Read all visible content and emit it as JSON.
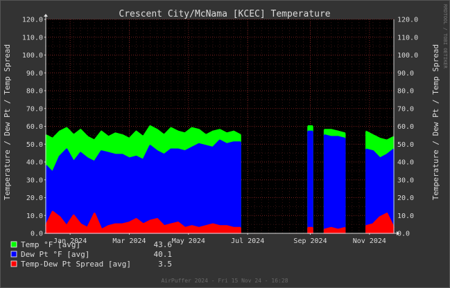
{
  "chart_data": {
    "type": "area",
    "title": "Crescent City/McNama [KCEC] Temperature",
    "ylabel_left": "Temperature / Dew Pt / Temp Spread",
    "ylabel_right": "Temperature / Dew Pt / Temp Spread",
    "ylim": [
      0,
      120
    ],
    "y_ticks": [
      "0.0",
      "10.0",
      "20.0",
      "30.0",
      "40.0",
      "50.0",
      "60.0",
      "70.0",
      "80.0",
      "90.0",
      "100.0",
      "110.0",
      "120.0"
    ],
    "x_tick_labels": [
      "Jan 2024",
      "Mar 2024",
      "May 2024",
      "Jul 2024",
      "Sep 2024",
      "Nov 2024"
    ],
    "x_tick_weeks": [
      3.5,
      12,
      20.5,
      29,
      38,
      46.5
    ],
    "x_range_weeks": [
      0,
      50
    ],
    "week_x": [
      0,
      1,
      2,
      3,
      4,
      5,
      6,
      7,
      8,
      9,
      10,
      11,
      12,
      13,
      14,
      15,
      16,
      17,
      18,
      19,
      20,
      21,
      22,
      23,
      24,
      25,
      26,
      27,
      28,
      29,
      30,
      31,
      32,
      33,
      34,
      35,
      36,
      37,
      38,
      39,
      40,
      41,
      42,
      43,
      44,
      45,
      46,
      47,
      48,
      49,
      50
    ],
    "series": [
      {
        "name": "Temp °F [avg]",
        "color": "#00ff00",
        "summary": "43.6",
        "values": [
          55,
          53,
          57,
          59,
          55,
          58,
          54,
          52,
          57,
          54,
          56,
          55,
          53,
          57,
          54,
          60,
          58,
          55,
          59,
          57,
          56,
          59,
          58,
          55,
          57,
          58,
          56,
          57,
          55,
          null,
          null,
          null,
          null,
          null,
          null,
          null,
          null,
          null,
          60,
          null,
          58,
          58,
          57,
          56,
          null,
          null,
          57,
          55,
          53,
          52,
          54
        ]
      },
      {
        "name": "Dew Pt °F [avg]",
        "color": "#0000ff",
        "summary": "40.1",
        "values": [
          38,
          34,
          43,
          47,
          40,
          45,
          42,
          40,
          46,
          45,
          44,
          44,
          42,
          43,
          41,
          49,
          46,
          44,
          47,
          47,
          46,
          48,
          50,
          49,
          48,
          52,
          50,
          51,
          51,
          null,
          null,
          null,
          null,
          null,
          null,
          null,
          null,
          null,
          57,
          null,
          55,
          54,
          54,
          53,
          null,
          null,
          47,
          46,
          42,
          44,
          47
        ]
      },
      {
        "name": "Temp-Dew Pt Spread [avg]",
        "color": "#ff0000",
        "summary": "3.5",
        "values": [
          4,
          12,
          9,
          4,
          10,
          5,
          3,
          11,
          2,
          4,
          5,
          5,
          6,
          8,
          5,
          7,
          8,
          4,
          5,
          6,
          3,
          4,
          3,
          4,
          5,
          4,
          4,
          3,
          3,
          null,
          null,
          null,
          null,
          null,
          null,
          null,
          null,
          null,
          3,
          null,
          2,
          3,
          2,
          3,
          null,
          null,
          4,
          5,
          9,
          11,
          3
        ]
      }
    ],
    "grid": true,
    "legend_position": "bottom-left"
  },
  "watermark": "RRDTOOL / TOBI OETIKER",
  "footer": "AirPuffer 2024 - Fri 15 Nov 24 - 16:28"
}
